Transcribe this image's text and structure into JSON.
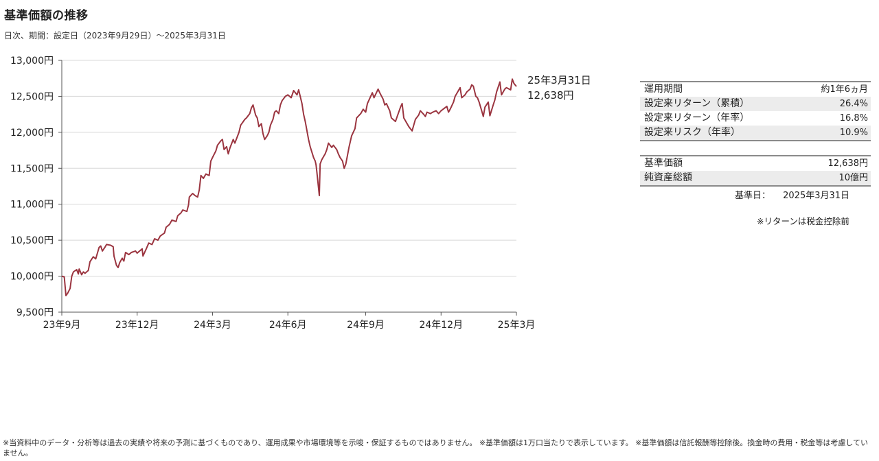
{
  "header": {
    "title": "基準価額の推移",
    "subtitle": "日次、期間：設定日（2023年9月29日）～2025年3月31日"
  },
  "latest": {
    "date": "25年3月31日",
    "value": "12,638円"
  },
  "stats_table_1": [
    {
      "label": "運用期間",
      "value": "約1年6ヵ月"
    },
    {
      "label": "設定来リターン（累積）",
      "value": "26.4%"
    },
    {
      "label": "設定来リターン（年率）",
      "value": "16.8%"
    },
    {
      "label": "設定来リスク（年率）",
      "value": "10.9%"
    }
  ],
  "stats_table_2": [
    {
      "label": "基準価額",
      "value": "12,638円"
    },
    {
      "label": "純資産総額",
      "value": "10億円"
    }
  ],
  "base_date": {
    "label": "基準日：",
    "value": "2025年3月31日"
  },
  "note": "※リターンは税金控除前",
  "footer": "※当資料中のデータ・分析等は過去の実績や将来の予測に基づくものであり、運用成果や市場環境等を示唆・保証するものではありません。 ※基準価額は1万口当たりで表示しています。 ※基準価額は信託報酬等控除後。換金時の費用・税金等は考慮していません。",
  "colors": {
    "line": "#9b3540",
    "grid": "#d8d8d8",
    "axis": "#555555"
  },
  "chart_data": {
    "type": "line",
    "title": "基準価額の推移",
    "xlabel": "",
    "ylabel": "",
    "ylim": [
      9500,
      13000
    ],
    "y_ticks": [
      9500,
      10000,
      10500,
      11000,
      11500,
      12000,
      12500,
      13000
    ],
    "y_tick_labels": [
      "9,500円",
      "10,000円",
      "10,500円",
      "11,000円",
      "11,500円",
      "12,000円",
      "12,500円",
      "13,000円"
    ],
    "x_ticks": [
      "2023-09-29",
      "2023-12-29",
      "2024-03-29",
      "2024-06-28",
      "2024-09-30",
      "2024-12-30",
      "2025-03-31"
    ],
    "x_tick_labels": [
      "23年9月",
      "23年12月",
      "24年3月",
      "24年6月",
      "24年9月",
      "24年12月",
      "25年3月"
    ],
    "grid": true,
    "series": [
      {
        "points": [
          [
            "2023-09-29",
            10000
          ],
          [
            "2023-10-02",
            9990
          ],
          [
            "2023-10-04",
            9730
          ],
          [
            "2023-10-06",
            9760
          ],
          [
            "2023-10-09",
            9830
          ],
          [
            "2023-10-11",
            10000
          ],
          [
            "2023-10-13",
            10060
          ],
          [
            "2023-10-17",
            10090
          ],
          [
            "2023-10-19",
            10030
          ],
          [
            "2023-10-20",
            10100
          ],
          [
            "2023-10-23",
            10020
          ],
          [
            "2023-10-25",
            10060
          ],
          [
            "2023-10-27",
            10040
          ],
          [
            "2023-10-31",
            10080
          ],
          [
            "2023-11-02",
            10200
          ],
          [
            "2023-11-06",
            10270
          ],
          [
            "2023-11-09",
            10240
          ],
          [
            "2023-11-13",
            10400
          ],
          [
            "2023-11-15",
            10420
          ],
          [
            "2023-11-17",
            10350
          ],
          [
            "2023-11-20",
            10400
          ],
          [
            "2023-11-22",
            10440
          ],
          [
            "2023-11-27",
            10430
          ],
          [
            "2023-11-30",
            10410
          ],
          [
            "2023-12-01",
            10280
          ],
          [
            "2023-12-04",
            10150
          ],
          [
            "2023-12-06",
            10120
          ],
          [
            "2023-12-08",
            10190
          ],
          [
            "2023-12-11",
            10250
          ],
          [
            "2023-12-13",
            10210
          ],
          [
            "2023-12-15",
            10330
          ],
          [
            "2023-12-19",
            10300
          ],
          [
            "2023-12-22",
            10330
          ],
          [
            "2023-12-27",
            10350
          ],
          [
            "2023-12-29",
            10320
          ],
          [
            "2024-01-04",
            10380
          ],
          [
            "2024-01-05",
            10280
          ],
          [
            "2024-01-09",
            10380
          ],
          [
            "2024-01-12",
            10460
          ],
          [
            "2024-01-16",
            10440
          ],
          [
            "2024-01-19",
            10520
          ],
          [
            "2024-01-23",
            10500
          ],
          [
            "2024-01-26",
            10560
          ],
          [
            "2024-01-31",
            10600
          ],
          [
            "2024-02-02",
            10680
          ],
          [
            "2024-02-06",
            10720
          ],
          [
            "2024-02-09",
            10780
          ],
          [
            "2024-02-14",
            10760
          ],
          [
            "2024-02-16",
            10840
          ],
          [
            "2024-02-20",
            10880
          ],
          [
            "2024-02-22",
            10920
          ],
          [
            "2024-02-27",
            10900
          ],
          [
            "2024-02-29",
            10990
          ],
          [
            "2024-03-01",
            11100
          ],
          [
            "2024-03-05",
            11150
          ],
          [
            "2024-03-08",
            11120
          ],
          [
            "2024-03-11",
            11100
          ],
          [
            "2024-03-13",
            11200
          ],
          [
            "2024-03-15",
            11400
          ],
          [
            "2024-03-18",
            11360
          ],
          [
            "2024-03-21",
            11420
          ],
          [
            "2024-03-25",
            11400
          ],
          [
            "2024-03-27",
            11600
          ],
          [
            "2024-03-29",
            11650
          ],
          [
            "2024-04-02",
            11740
          ],
          [
            "2024-04-04",
            11820
          ],
          [
            "2024-04-08",
            11880
          ],
          [
            "2024-04-10",
            11900
          ],
          [
            "2024-04-12",
            11760
          ],
          [
            "2024-04-15",
            11800
          ],
          [
            "2024-04-17",
            11700
          ],
          [
            "2024-04-19",
            11780
          ],
          [
            "2024-04-23",
            11900
          ],
          [
            "2024-04-25",
            11850
          ],
          [
            "2024-04-30",
            12000
          ],
          [
            "2024-05-02",
            12100
          ],
          [
            "2024-05-07",
            12180
          ],
          [
            "2024-05-09",
            12200
          ],
          [
            "2024-05-13",
            12260
          ],
          [
            "2024-05-15",
            12340
          ],
          [
            "2024-05-17",
            12380
          ],
          [
            "2024-05-20",
            12240
          ],
          [
            "2024-05-22",
            12200
          ],
          [
            "2024-05-24",
            12080
          ],
          [
            "2024-05-27",
            12120
          ],
          [
            "2024-05-29",
            11980
          ],
          [
            "2024-05-31",
            11900
          ],
          [
            "2024-06-03",
            11950
          ],
          [
            "2024-06-05",
            12000
          ],
          [
            "2024-06-07",
            12100
          ],
          [
            "2024-06-10",
            12180
          ],
          [
            "2024-06-12",
            12280
          ],
          [
            "2024-06-14",
            12300
          ],
          [
            "2024-06-17",
            12260
          ],
          [
            "2024-06-19",
            12380
          ],
          [
            "2024-06-21",
            12440
          ],
          [
            "2024-06-25",
            12500
          ],
          [
            "2024-06-28",
            12520
          ],
          [
            "2024-07-02",
            12480
          ],
          [
            "2024-07-05",
            12580
          ],
          [
            "2024-07-09",
            12520
          ],
          [
            "2024-07-11",
            12590
          ],
          [
            "2024-07-15",
            12400
          ],
          [
            "2024-07-17",
            12250
          ],
          [
            "2024-07-19",
            12150
          ],
          [
            "2024-07-23",
            11900
          ],
          [
            "2024-07-25",
            11800
          ],
          [
            "2024-07-29",
            11650
          ],
          [
            "2024-07-31",
            11600
          ],
          [
            "2024-08-01",
            11550
          ],
          [
            "2024-08-02",
            11450
          ],
          [
            "2024-08-05",
            11120
          ],
          [
            "2024-08-06",
            11560
          ],
          [
            "2024-08-08",
            11620
          ],
          [
            "2024-08-12",
            11700
          ],
          [
            "2024-08-14",
            11760
          ],
          [
            "2024-08-16",
            11850
          ],
          [
            "2024-08-20",
            11790
          ],
          [
            "2024-08-22",
            11820
          ],
          [
            "2024-08-26",
            11760
          ],
          [
            "2024-08-28",
            11700
          ],
          [
            "2024-08-30",
            11650
          ],
          [
            "2024-09-02",
            11600
          ],
          [
            "2024-09-04",
            11500
          ],
          [
            "2024-09-06",
            11560
          ],
          [
            "2024-09-10",
            11800
          ],
          [
            "2024-09-13",
            11950
          ],
          [
            "2024-09-17",
            12050
          ],
          [
            "2024-09-19",
            12200
          ],
          [
            "2024-09-24",
            12260
          ],
          [
            "2024-09-27",
            12320
          ],
          [
            "2024-09-30",
            12280
          ],
          [
            "2024-10-02",
            12400
          ],
          [
            "2024-10-04",
            12450
          ],
          [
            "2024-10-08",
            12550
          ],
          [
            "2024-10-10",
            12480
          ],
          [
            "2024-10-15",
            12600
          ],
          [
            "2024-10-17",
            12550
          ],
          [
            "2024-10-21",
            12460
          ],
          [
            "2024-10-23",
            12380
          ],
          [
            "2024-10-25",
            12400
          ],
          [
            "2024-10-29",
            12300
          ],
          [
            "2024-10-31",
            12200
          ],
          [
            "2024-11-05",
            12150
          ],
          [
            "2024-11-07",
            12220
          ],
          [
            "2024-11-11",
            12350
          ],
          [
            "2024-11-13",
            12400
          ],
          [
            "2024-11-15",
            12200
          ],
          [
            "2024-11-19",
            12120
          ],
          [
            "2024-11-21",
            12080
          ],
          [
            "2024-11-25",
            12020
          ],
          [
            "2024-11-27",
            12100
          ],
          [
            "2024-11-29",
            12180
          ],
          [
            "2024-12-03",
            12240
          ],
          [
            "2024-12-05",
            12300
          ],
          [
            "2024-12-09",
            12250
          ],
          [
            "2024-12-11",
            12220
          ],
          [
            "2024-12-13",
            12280
          ],
          [
            "2024-12-17",
            12260
          ],
          [
            "2024-12-20",
            12280
          ],
          [
            "2024-12-24",
            12300
          ],
          [
            "2024-12-27",
            12260
          ],
          [
            "2024-12-30",
            12300
          ],
          [
            "2025-01-06",
            12360
          ],
          [
            "2025-01-08",
            12280
          ],
          [
            "2025-01-10",
            12320
          ],
          [
            "2025-01-14",
            12420
          ],
          [
            "2025-01-16",
            12500
          ],
          [
            "2025-01-20",
            12580
          ],
          [
            "2025-01-22",
            12620
          ],
          [
            "2025-01-24",
            12480
          ],
          [
            "2025-01-28",
            12520
          ],
          [
            "2025-01-30",
            12560
          ],
          [
            "2025-02-03",
            12600
          ],
          [
            "2025-02-05",
            12660
          ],
          [
            "2025-02-07",
            12640
          ],
          [
            "2025-02-10",
            12500
          ],
          [
            "2025-02-12",
            12480
          ],
          [
            "2025-02-14",
            12420
          ],
          [
            "2025-02-17",
            12300
          ],
          [
            "2025-02-19",
            12220
          ],
          [
            "2025-02-21",
            12350
          ],
          [
            "2025-02-25",
            12420
          ],
          [
            "2025-02-27",
            12230
          ],
          [
            "2025-03-03",
            12380
          ],
          [
            "2025-03-05",
            12450
          ],
          [
            "2025-03-07",
            12560
          ],
          [
            "2025-03-11",
            12700
          ],
          [
            "2025-03-13",
            12520
          ],
          [
            "2025-03-17",
            12600
          ],
          [
            "2025-03-19",
            12620
          ],
          [
            "2025-03-24",
            12590
          ],
          [
            "2025-03-26",
            12740
          ],
          [
            "2025-03-28",
            12680
          ],
          [
            "2025-03-31",
            12638
          ]
        ]
      }
    ]
  }
}
